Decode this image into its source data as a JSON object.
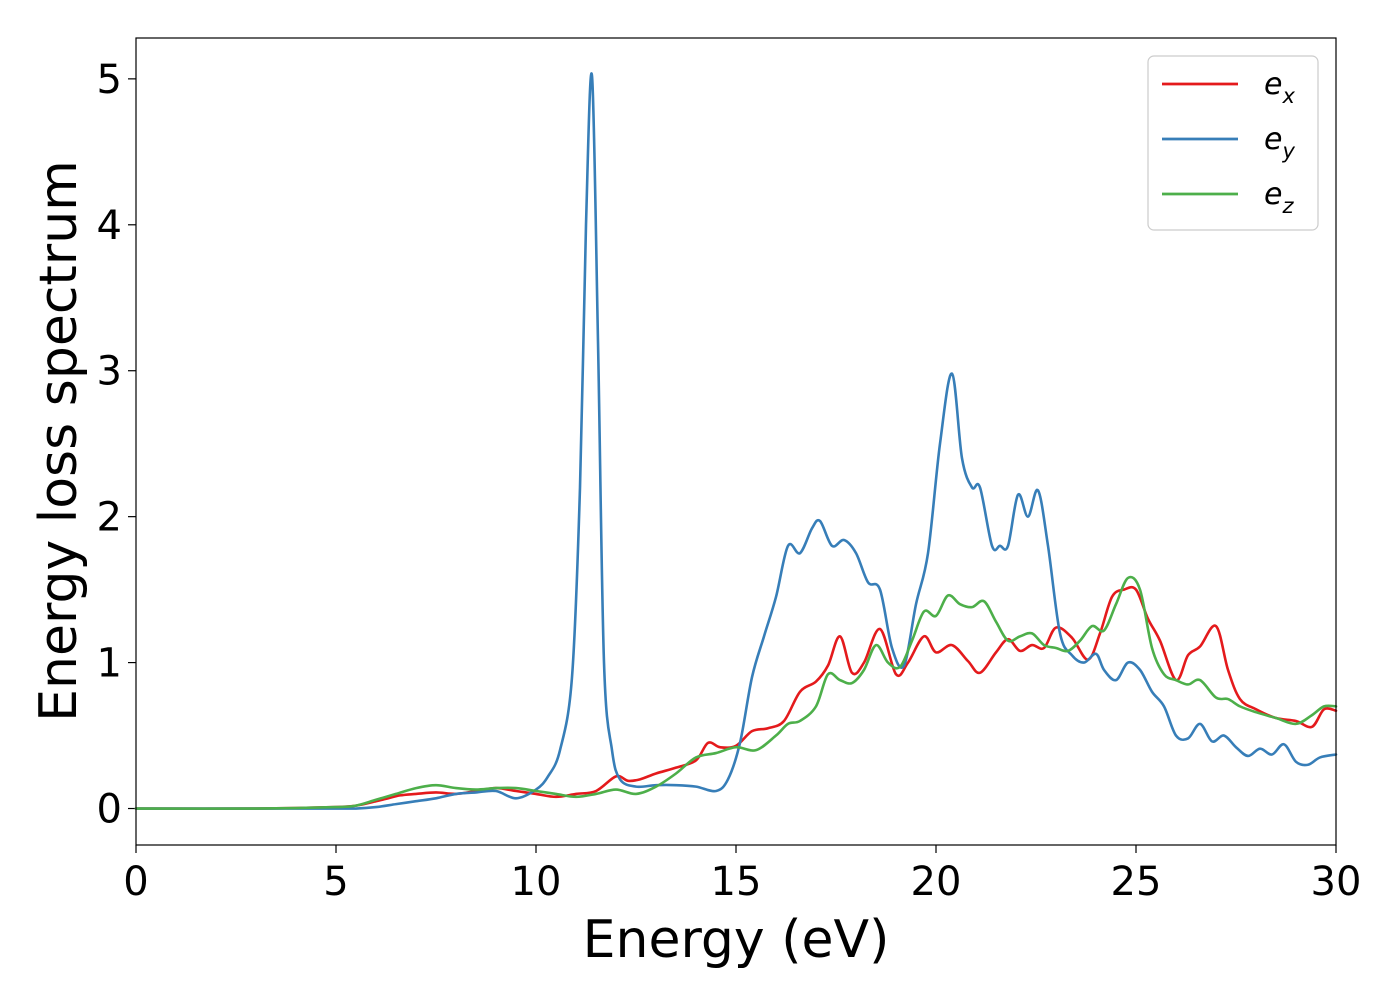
{
  "chart_data": {
    "type": "line",
    "xlabel": "Energy (eV)",
    "ylabel": "Energy loss spectrum",
    "xlim": [
      0,
      30
    ],
    "ylim": [
      -0.25,
      5.28
    ],
    "xticks": [
      0,
      5,
      10,
      15,
      20,
      25,
      30
    ],
    "yticks": [
      0,
      1,
      2,
      3,
      4,
      5
    ],
    "grid": false,
    "legend_position": "top-right",
    "series": [
      {
        "name": "e_x",
        "label_base": "e",
        "label_sub": "x",
        "color": "#e41a1c",
        "x": [
          0,
          3,
          5,
          5.5,
          6,
          6.3,
          6.6,
          7,
          7.5,
          8,
          8.5,
          9,
          9.5,
          10,
          10.5,
          11,
          11.5,
          12,
          12.3,
          12.6,
          13,
          13.5,
          14,
          14.3,
          14.6,
          15,
          15.4,
          15.8,
          16.2,
          16.6,
          17,
          17.3,
          17.6,
          17.9,
          18.2,
          18.6,
          19,
          19.3,
          19.7,
          20,
          20.4,
          20.8,
          21.1,
          21.5,
          21.8,
          22.1,
          22.4,
          22.7,
          23,
          23.4,
          23.8,
          24.1,
          24.4,
          24.7,
          25,
          25.3,
          25.6,
          26,
          26.3,
          26.6,
          27,
          27.3,
          27.6,
          28,
          28.5,
          29,
          29.4,
          29.7,
          30
        ],
        "y": [
          0,
          0,
          0.01,
          0.02,
          0.05,
          0.07,
          0.09,
          0.1,
          0.11,
          0.1,
          0.12,
          0.14,
          0.12,
          0.1,
          0.08,
          0.1,
          0.12,
          0.22,
          0.19,
          0.2,
          0.24,
          0.28,
          0.33,
          0.45,
          0.42,
          0.43,
          0.53,
          0.55,
          0.6,
          0.8,
          0.87,
          0.98,
          1.18,
          0.93,
          1.0,
          1.23,
          0.92,
          1.0,
          1.18,
          1.07,
          1.12,
          1.01,
          0.93,
          1.07,
          1.16,
          1.08,
          1.12,
          1.1,
          1.24,
          1.17,
          1.02,
          1.2,
          1.45,
          1.5,
          1.5,
          1.3,
          1.15,
          0.88,
          1.05,
          1.11,
          1.25,
          0.95,
          0.75,
          0.68,
          0.62,
          0.6,
          0.56,
          0.68,
          0.67
        ]
      },
      {
        "name": "e_y",
        "label_base": "e",
        "label_sub": "y",
        "color": "#377eb8",
        "x": [
          0,
          3,
          5,
          5.5,
          6,
          6.5,
          7,
          7.5,
          8,
          8.5,
          9,
          9.5,
          10,
          10.3,
          10.6,
          10.9,
          11.1,
          11.25,
          11.4,
          11.55,
          11.7,
          11.9,
          12.1,
          12.5,
          13,
          13.5,
          14,
          14.5,
          14.8,
          15.1,
          15.4,
          15.7,
          16,
          16.3,
          16.6,
          16.9,
          17.1,
          17.4,
          17.7,
          18,
          18.3,
          18.6,
          18.9,
          19.2,
          19.5,
          19.8,
          20.1,
          20.4,
          20.65,
          20.9,
          21.1,
          21.4,
          21.6,
          21.8,
          22.05,
          22.3,
          22.55,
          22.8,
          23.1,
          23.4,
          23.7,
          24,
          24.2,
          24.5,
          24.8,
          25.1,
          25.4,
          25.7,
          26,
          26.3,
          26.6,
          26.9,
          27.2,
          27.5,
          27.8,
          28.1,
          28.4,
          28.7,
          29,
          29.3,
          29.6,
          30
        ],
        "y": [
          0,
          0,
          0,
          0,
          0.01,
          0.03,
          0.05,
          0.07,
          0.1,
          0.11,
          0.12,
          0.07,
          0.13,
          0.22,
          0.4,
          0.9,
          2.2,
          4.0,
          5.02,
          3.2,
          1.0,
          0.4,
          0.2,
          0.15,
          0.16,
          0.16,
          0.15,
          0.12,
          0.2,
          0.45,
          0.9,
          1.18,
          1.45,
          1.8,
          1.75,
          1.92,
          1.97,
          1.8,
          1.84,
          1.75,
          1.55,
          1.5,
          1.1,
          0.98,
          1.4,
          1.75,
          2.5,
          2.98,
          2.4,
          2.2,
          2.2,
          1.8,
          1.8,
          1.8,
          2.15,
          2.0,
          2.18,
          1.8,
          1.2,
          1.05,
          1.0,
          1.06,
          0.95,
          0.88,
          1.0,
          0.95,
          0.8,
          0.7,
          0.5,
          0.48,
          0.58,
          0.46,
          0.5,
          0.42,
          0.36,
          0.41,
          0.37,
          0.44,
          0.32,
          0.3,
          0.35,
          0.37
        ]
      },
      {
        "name": "e_z",
        "label_base": "e",
        "label_sub": "z",
        "color": "#4daf4a",
        "x": [
          0,
          3,
          5,
          5.5,
          6,
          6.5,
          7,
          7.5,
          8,
          8.5,
          9,
          9.5,
          10,
          10.5,
          11,
          11.5,
          12,
          12.5,
          13,
          13.5,
          14,
          14.5,
          15,
          15.5,
          16,
          16.3,
          16.6,
          17,
          17.3,
          17.6,
          17.9,
          18.2,
          18.5,
          18.8,
          19.1,
          19.4,
          19.7,
          20,
          20.3,
          20.6,
          20.9,
          21.2,
          21.5,
          21.8,
          22.1,
          22.4,
          22.7,
          23,
          23.3,
          23.6,
          23.9,
          24.2,
          24.5,
          24.8,
          25.1,
          25.4,
          25.7,
          26,
          26.3,
          26.6,
          27,
          27.3,
          27.6,
          28,
          28.5,
          29,
          29.4,
          29.7,
          30
        ],
        "y": [
          0,
          0,
          0.01,
          0.02,
          0.06,
          0.1,
          0.14,
          0.16,
          0.14,
          0.13,
          0.14,
          0.14,
          0.12,
          0.1,
          0.08,
          0.1,
          0.13,
          0.1,
          0.15,
          0.24,
          0.35,
          0.38,
          0.42,
          0.4,
          0.5,
          0.58,
          0.6,
          0.7,
          0.92,
          0.88,
          0.86,
          0.95,
          1.12,
          1.0,
          0.97,
          1.15,
          1.35,
          1.32,
          1.46,
          1.4,
          1.38,
          1.42,
          1.28,
          1.15,
          1.18,
          1.2,
          1.12,
          1.1,
          1.08,
          1.15,
          1.25,
          1.22,
          1.4,
          1.58,
          1.5,
          1.1,
          0.92,
          0.88,
          0.85,
          0.88,
          0.76,
          0.75,
          0.7,
          0.66,
          0.62,
          0.58,
          0.64,
          0.7,
          0.7
        ]
      }
    ]
  }
}
